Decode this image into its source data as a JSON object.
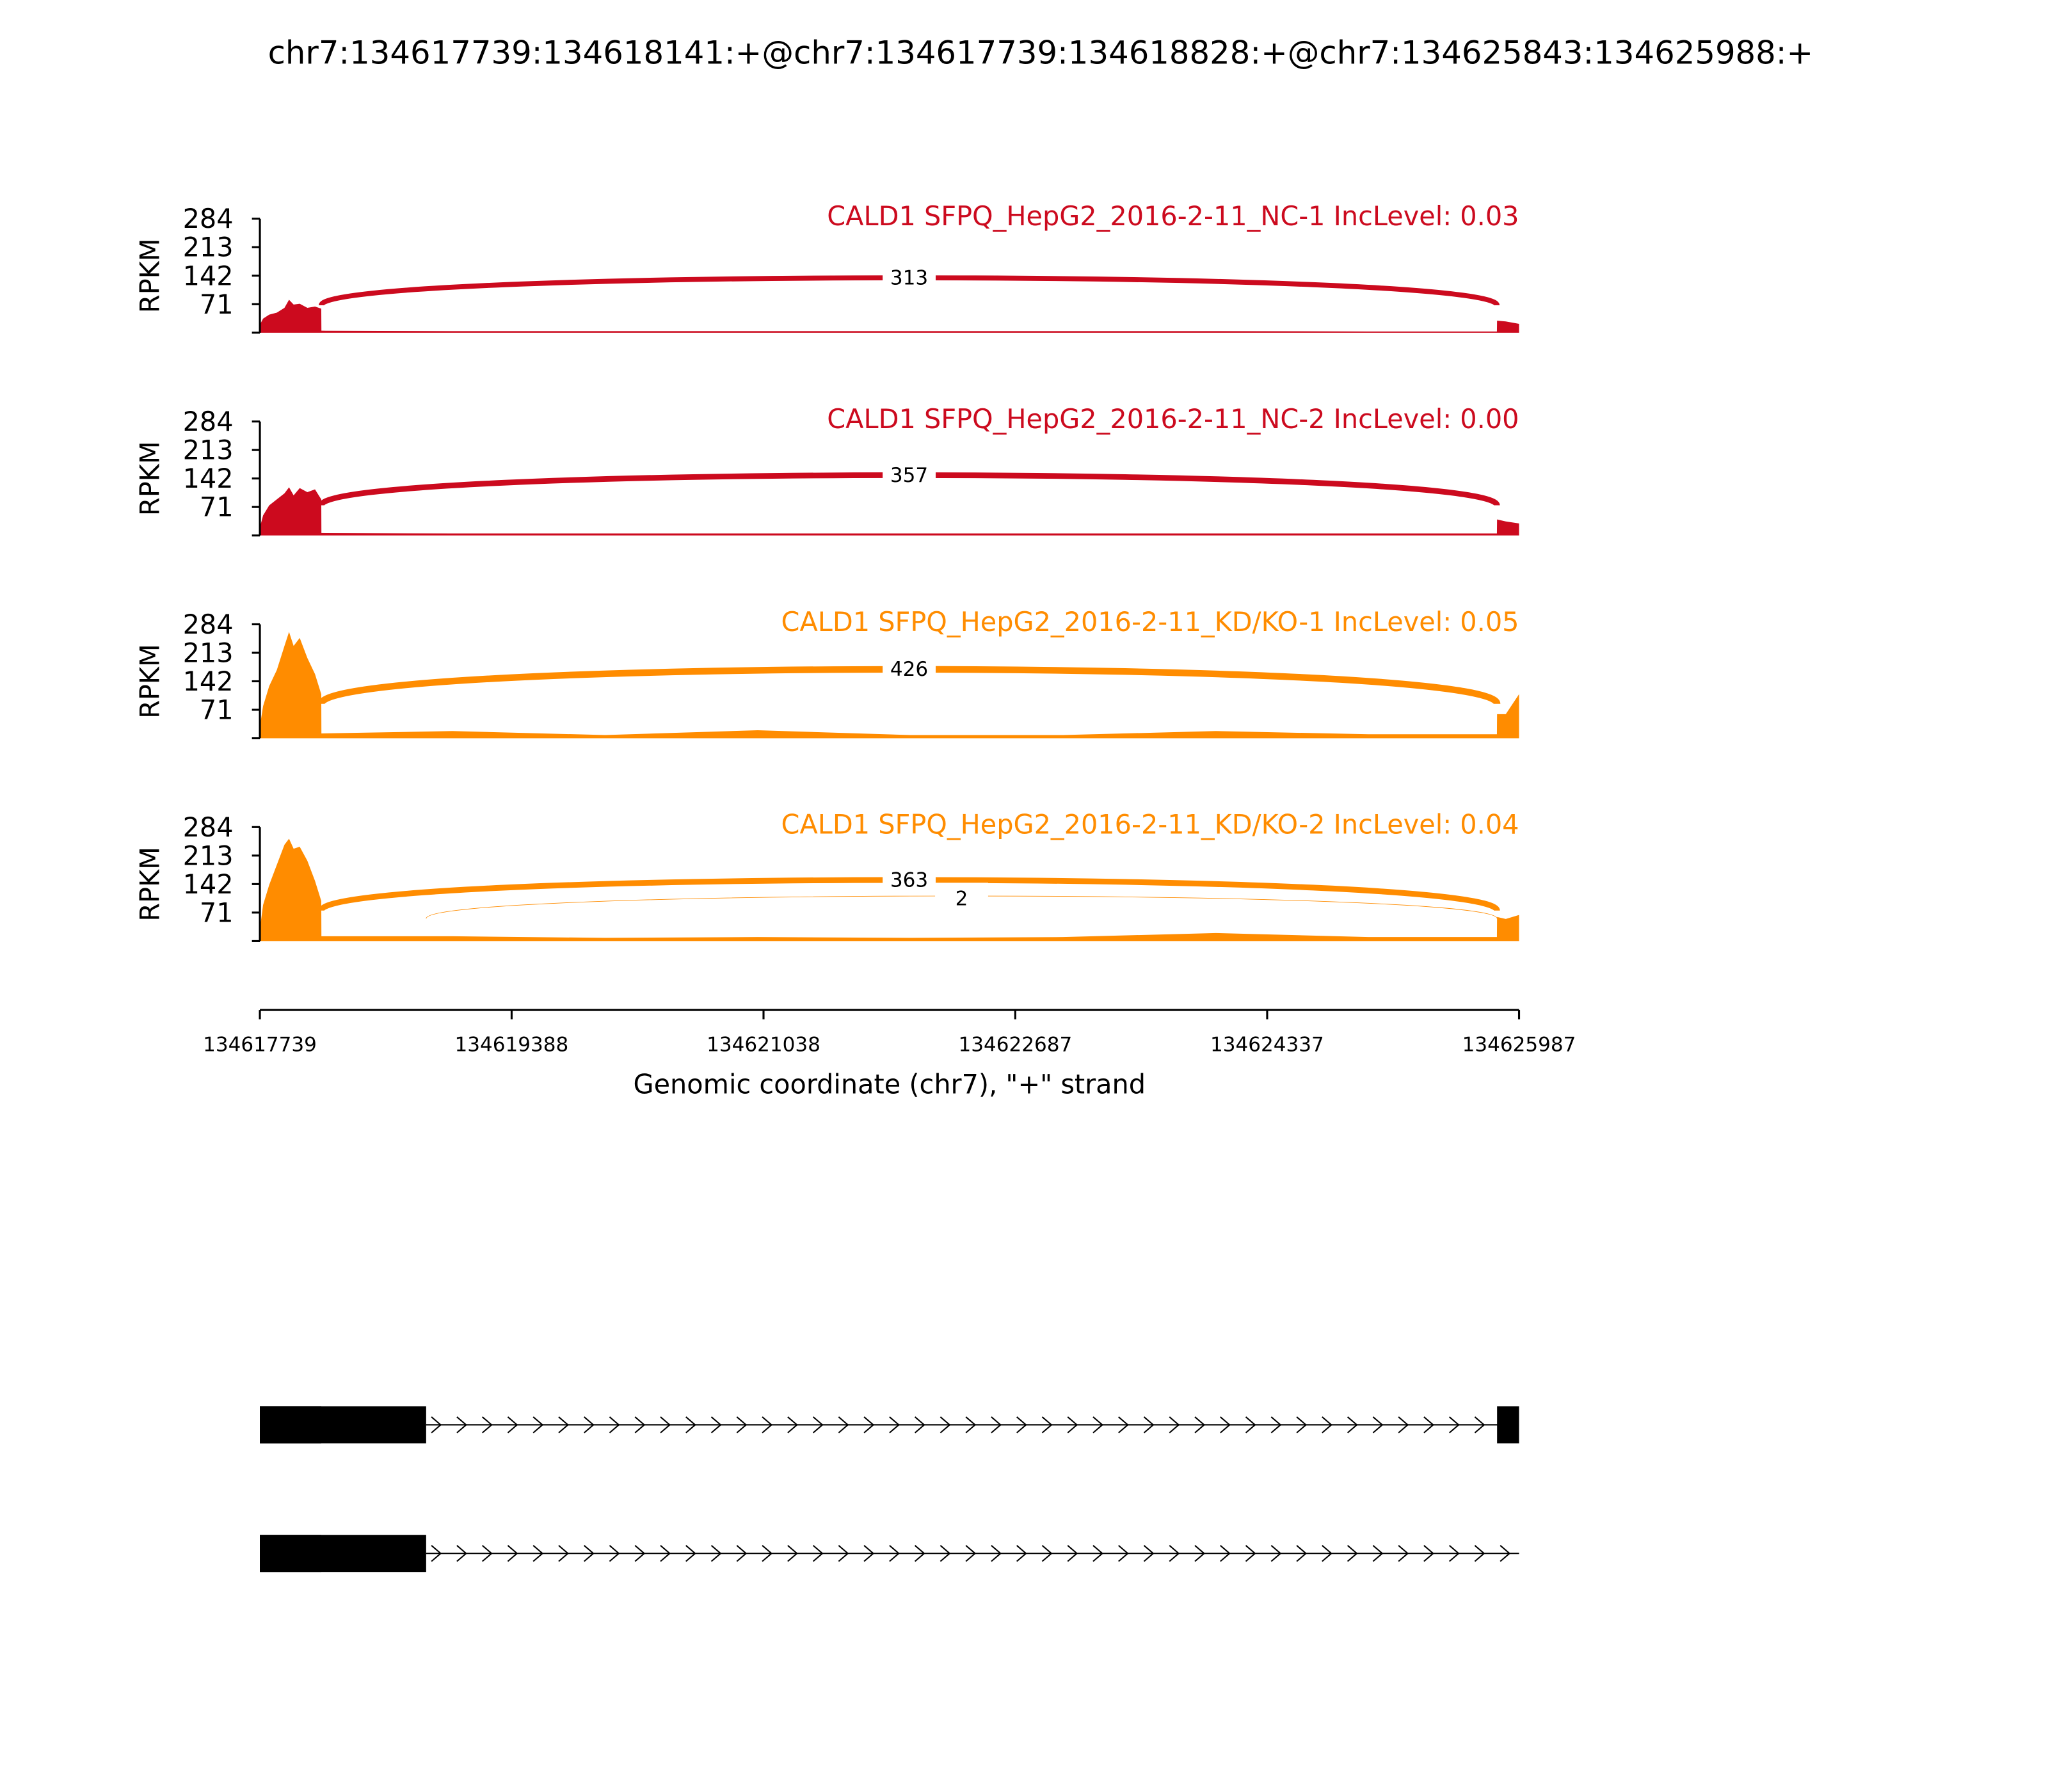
{
  "chart_data": {
    "type": "sashimi",
    "title": "chr7:134617739:134618141:+@chr7:134617739:134618828:+@chr7:134625843:134625988:+",
    "xlabel": "Genomic coordinate (chr7), \"+\" strand",
    "xlim": [
      134617739,
      134625987
    ],
    "xticks": [
      134617739,
      134619388,
      134621038,
      134622687,
      134624337,
      134625987
    ],
    "ylabel": "RPKM",
    "ylim": [
      0,
      284
    ],
    "yticks": [
      0,
      71,
      142,
      213,
      284
    ],
    "panels": [
      {
        "label": "CALD1 SFPQ_HepG2_2016-2-11_NC-1 IncLevel: 0.03",
        "color": "#cc0a1e",
        "coverage": {
          "x": [
            134617739,
            134617760,
            134617800,
            134617850,
            134617900,
            134617930,
            134617960,
            134618000,
            134618050,
            134618100,
            134618141,
            134618142,
            134619000,
            134620000,
            134621000,
            134622000,
            134623000,
            134624000,
            134625000,
            134625842,
            134625843,
            134625900,
            134625987
          ],
          "values": [
            20,
            35,
            45,
            50,
            62,
            82,
            70,
            72,
            62,
            65,
            60,
            5,
            4,
            4,
            4,
            4,
            4,
            4,
            3,
            3,
            30,
            28,
            22
          ]
        },
        "junctions": [
          {
            "start": 134618141,
            "end": 134625843,
            "count": 313
          }
        ]
      },
      {
        "label": "CALD1 SFPQ_HepG2_2016-2-11_NC-2 IncLevel: 0.00",
        "color": "#cc0a1e",
        "coverage": {
          "x": [
            134617739,
            134617760,
            134617800,
            134617850,
            134617900,
            134617930,
            134617960,
            134618000,
            134618050,
            134618100,
            134618141,
            134618142,
            134619000,
            134620000,
            134621000,
            134622000,
            134623000,
            134624000,
            134625000,
            134625842,
            134625843,
            134625900,
            134625987
          ],
          "values": [
            20,
            50,
            75,
            90,
            105,
            120,
            100,
            118,
            108,
            115,
            90,
            6,
            5,
            5,
            5,
            5,
            5,
            5,
            5,
            5,
            40,
            35,
            30
          ]
        },
        "junctions": [
          {
            "start": 134618141,
            "end": 134625843,
            "count": 357
          }
        ]
      },
      {
        "label": "CALD1 SFPQ_HepG2_2016-2-11_KD/KO-1 IncLevel: 0.05",
        "color": "#ff8c00",
        "coverage": {
          "x": [
            134617739,
            134617760,
            134617800,
            134617850,
            134617900,
            134617930,
            134617960,
            134618000,
            134618050,
            134618100,
            134618141,
            134618142,
            134619000,
            134620000,
            134621000,
            134622000,
            134623000,
            134624000,
            134625000,
            134625842,
            134625843,
            134625900,
            134625987
          ],
          "values": [
            30,
            80,
            130,
            170,
            230,
            265,
            230,
            250,
            200,
            160,
            110,
            12,
            18,
            8,
            20,
            8,
            8,
            18,
            10,
            10,
            60,
            60,
            110
          ]
        },
        "junctions": [
          {
            "start": 134618141,
            "end": 134625843,
            "count": 426
          }
        ]
      },
      {
        "label": "CALD1 SFPQ_HepG2_2016-2-11_KD/KO-2 IncLevel: 0.04",
        "color": "#ff8c00",
        "coverage": {
          "x": [
            134617739,
            134617760,
            134617800,
            134617850,
            134617900,
            134617930,
            134617960,
            134618000,
            134618050,
            134618100,
            134618141,
            134618142,
            134619000,
            134620000,
            134621000,
            134622000,
            134623000,
            134624000,
            134625000,
            134625842,
            134625843,
            134625900,
            134625987
          ],
          "values": [
            30,
            90,
            140,
            190,
            240,
            255,
            230,
            235,
            200,
            150,
            100,
            12,
            12,
            8,
            10,
            8,
            10,
            20,
            10,
            10,
            60,
            55,
            65
          ]
        },
        "junctions": [
          {
            "start": 134618141,
            "end": 134625843,
            "count": 363
          },
          {
            "start": 134618828,
            "end": 134625843,
            "count": 2
          }
        ]
      }
    ],
    "transcripts": [
      {
        "exons": [
          [
            134617739,
            134618141
          ],
          [
            134617739,
            134618828
          ],
          [
            134625843,
            134625987
          ]
        ]
      },
      {
        "exons": [
          [
            134617739,
            134618141
          ],
          [
            134617739,
            134618828
          ]
        ]
      }
    ]
  }
}
